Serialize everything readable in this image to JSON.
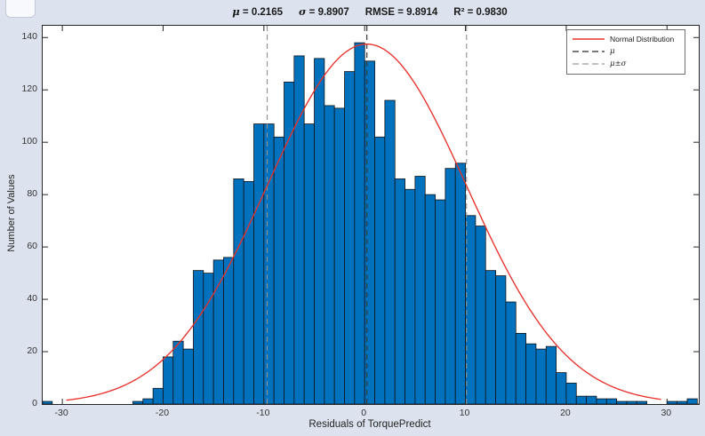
{
  "title": {
    "segments": [
      {
        "sym": "μ",
        "rest": " = 0.2165",
        "italic": true
      },
      {
        "sym": "σ",
        "rest": " = 9.8907",
        "italic": true
      },
      {
        "sym": "RMSE",
        "rest": " = 9.8914",
        "italic": false
      },
      {
        "sym": "R²",
        "rest": " = 0.9830",
        "italic": false
      }
    ]
  },
  "legend": {
    "items": [
      {
        "label": "Normal Distribution",
        "style": "solid",
        "color": "#e8312b",
        "math": false
      },
      {
        "label": "μ",
        "style": "dashed",
        "color": "#4a4a4a",
        "math": true
      },
      {
        "label": "μ±σ",
        "style": "dashed",
        "color": "#9a9a9a",
        "math": true
      }
    ]
  },
  "colors": {
    "figure_bg": "#dce3ee",
    "axes_bg": "#ffffff",
    "frame": "#262626",
    "bar_fill": "#0072BD",
    "bar_edge": "#10131a",
    "curve": "#e8312b",
    "mu_line": "#3a3a3a",
    "sigma_line": "#909090"
  },
  "chart_data": {
    "type": "histogram+line",
    "title": "μ = 0.2165   σ = 9.8907   RMSE = 9.8914   R² = 0.9830",
    "xlabel": "Residuals of TorquePredict",
    "ylabel": "Number of Values",
    "stats": {
      "mu": 0.2165,
      "sigma": 9.8907,
      "rmse": 9.8914,
      "r_squared": 0.983
    },
    "xlim": [
      -31.95,
      33.15
    ],
    "ylim": [
      0,
      144.5
    ],
    "x_ticks": [
      -30,
      -20,
      -10,
      0,
      10,
      20,
      30
    ],
    "y_ticks": [
      0,
      20,
      40,
      60,
      80,
      100,
      120,
      140
    ],
    "grid": false,
    "legend_position": "top-right",
    "bins": {
      "start_value": -32,
      "bin_width": 1,
      "counts": [
        1,
        0,
        0,
        0,
        0,
        0,
        0,
        0,
        0,
        1,
        2,
        6,
        18,
        24,
        21,
        51,
        50,
        55,
        56,
        86,
        85,
        107,
        107,
        102,
        123,
        133,
        107,
        132,
        114,
        113,
        127,
        138,
        131,
        102,
        116,
        86,
        82,
        87,
        80,
        78,
        90,
        92,
        72,
        68,
        51,
        49,
        39,
        27,
        23,
        21,
        22,
        12,
        8,
        3,
        3,
        2,
        2,
        1,
        1,
        1,
        0,
        0,
        1,
        1,
        2
      ]
    },
    "normal_fit": {
      "mu": 0.2165,
      "sigma": 9.8907,
      "peak": 137.5,
      "x_range": [
        -29.6,
        29.6
      ]
    },
    "mu_vline": 0.2165,
    "sigma_vlines": [
      -9.6742,
      10.1072
    ]
  }
}
